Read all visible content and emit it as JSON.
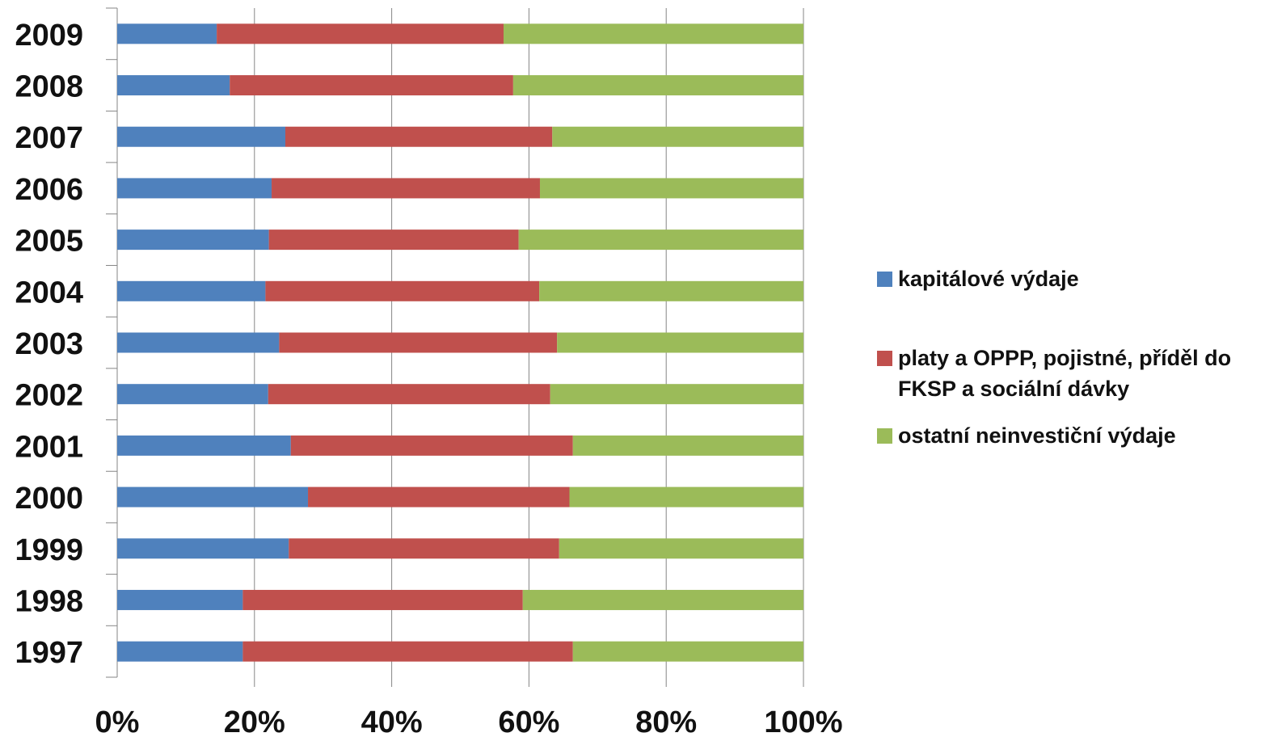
{
  "chart_data": {
    "type": "bar",
    "orientation": "horizontal",
    "stacked": "percent",
    "categories": [
      "1997",
      "1998",
      "1999",
      "2000",
      "2001",
      "2002",
      "2003",
      "2004",
      "2005",
      "2006",
      "2007",
      "2008",
      "2009"
    ],
    "series": [
      {
        "name": "kapitálové výdaje",
        "color": "#4F81BD",
        "values": [
          18.3,
          18.3,
          25.0,
          27.8,
          25.3,
          22.0,
          23.6,
          21.6,
          22.1,
          22.5,
          24.5,
          16.4,
          14.5
        ]
      },
      {
        "name": "platy a OPPP, pojistné, příděl do FKSP a sociální dávky",
        "color": "#C0504D",
        "values": [
          48.1,
          40.8,
          39.4,
          38.1,
          41.1,
          41.1,
          40.5,
          39.9,
          36.4,
          39.1,
          38.9,
          41.3,
          41.8
        ]
      },
      {
        "name": "ostatní neinvestiční výdaje",
        "color": "#9BBB59",
        "values": [
          33.6,
          40.9,
          35.6,
          34.1,
          33.6,
          36.9,
          35.9,
          38.5,
          41.5,
          38.4,
          36.6,
          42.3,
          43.7
        ]
      }
    ],
    "xticks": [
      "0%",
      "20%",
      "40%",
      "60%",
      "80%",
      "100%"
    ],
    "xlim": [
      0,
      100
    ],
    "grid": true,
    "legend_position": "right",
    "title": "",
    "xlabel": "",
    "ylabel": ""
  }
}
